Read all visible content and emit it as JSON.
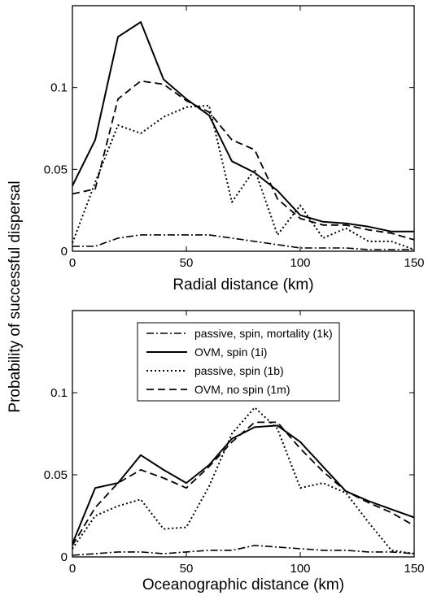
{
  "figure": {
    "ylabel": "Probability of successful dispersal"
  },
  "legend": {
    "entries": [
      {
        "label": "passive, spin, mortality (1k)",
        "style": "dashdot"
      },
      {
        "label": "OVM, spin (1i)",
        "style": "solid"
      },
      {
        "label": "passive, spin (1b)",
        "style": "dotted"
      },
      {
        "label": "OVM, no spin (1m)",
        "style": "dashed"
      }
    ],
    "placement": "top-center of bottom panel"
  },
  "chart_data": [
    {
      "type": "line",
      "xlabel": "Radial distance (km)",
      "ylabel": "",
      "xlim": [
        0,
        150
      ],
      "ylim": [
        0,
        0.15
      ],
      "xticks": [
        0,
        50,
        100,
        150
      ],
      "xtick_labels": [
        "0",
        "50",
        "100",
        "150"
      ],
      "yticks": [
        0,
        0.05,
        0.1
      ],
      "ytick_labels": [
        "0",
        "0.05",
        "0.1"
      ],
      "grid": false,
      "series": [
        {
          "name": "OVM, spin (1i)",
          "style": "solid",
          "x": [
            0,
            10,
            20,
            30,
            40,
            50,
            60,
            70,
            80,
            90,
            100,
            110,
            120,
            130,
            140,
            150
          ],
          "y": [
            0.04,
            0.068,
            0.131,
            0.14,
            0.105,
            0.093,
            0.083,
            0.055,
            0.048,
            0.037,
            0.022,
            0.018,
            0.017,
            0.015,
            0.012,
            0.012
          ]
        },
        {
          "name": "OVM, no spin (1m)",
          "style": "dashed",
          "x": [
            0,
            10,
            20,
            30,
            40,
            50,
            60,
            70,
            80,
            90,
            100,
            110,
            120,
            130,
            140,
            150
          ],
          "y": [
            0.035,
            0.038,
            0.093,
            0.104,
            0.102,
            0.092,
            0.085,
            0.068,
            0.062,
            0.032,
            0.02,
            0.016,
            0.016,
            0.013,
            0.011,
            0.007
          ]
        },
        {
          "name": "passive, spin (1b)",
          "style": "dotted",
          "x": [
            0,
            10,
            20,
            30,
            40,
            50,
            60,
            70,
            80,
            90,
            100,
            110,
            120,
            130,
            140,
            150
          ],
          "y": [
            0.005,
            0.042,
            0.077,
            0.072,
            0.082,
            0.088,
            0.089,
            0.03,
            0.05,
            0.01,
            0.028,
            0.008,
            0.014,
            0.006,
            0.006,
            0.001
          ]
        },
        {
          "name": "passive, spin, mortality (1k)",
          "style": "dashdot",
          "x": [
            0,
            10,
            20,
            30,
            40,
            50,
            60,
            70,
            80,
            90,
            100,
            110,
            120,
            130,
            140,
            150
          ],
          "y": [
            0.003,
            0.003,
            0.008,
            0.01,
            0.01,
            0.01,
            0.01,
            0.008,
            0.006,
            0.004,
            0.002,
            0.002,
            0.002,
            0.001,
            0.001,
            0.001
          ]
        }
      ]
    },
    {
      "type": "line",
      "xlabel": "Oceanographic distance (km)",
      "ylabel": "",
      "xlim": [
        0,
        150
      ],
      "ylim": [
        0,
        0.15
      ],
      "xticks": [
        0,
        50,
        100,
        150
      ],
      "xtick_labels": [
        "0",
        "50",
        "100",
        "150"
      ],
      "yticks": [
        0,
        0.05,
        0.1
      ],
      "ytick_labels": [
        "0",
        "0.05",
        "0.1"
      ],
      "grid": false,
      "series": [
        {
          "name": "OVM, spin (1i)",
          "style": "solid",
          "x": [
            0,
            10,
            20,
            30,
            40,
            50,
            60,
            70,
            80,
            90,
            100,
            110,
            120,
            130,
            140,
            150
          ],
          "y": [
            0.008,
            0.042,
            0.045,
            0.062,
            0.053,
            0.045,
            0.056,
            0.072,
            0.079,
            0.08,
            0.07,
            0.055,
            0.04,
            0.034,
            0.029,
            0.024
          ]
        },
        {
          "name": "OVM, no spin (1m)",
          "style": "dashed",
          "x": [
            0,
            10,
            20,
            30,
            40,
            50,
            60,
            70,
            80,
            90,
            100,
            110,
            120,
            130,
            140,
            150
          ],
          "y": [
            0.007,
            0.03,
            0.045,
            0.053,
            0.048,
            0.042,
            0.055,
            0.07,
            0.082,
            0.082,
            0.066,
            0.052,
            0.04,
            0.033,
            0.027,
            0.019
          ]
        },
        {
          "name": "passive, spin (1b)",
          "style": "dotted",
          "x": [
            0,
            10,
            20,
            30,
            40,
            50,
            60,
            70,
            80,
            90,
            100,
            110,
            120,
            130,
            140,
            150
          ],
          "y": [
            0.005,
            0.025,
            0.031,
            0.035,
            0.017,
            0.018,
            0.043,
            0.075,
            0.091,
            0.078,
            0.042,
            0.045,
            0.039,
            0.021,
            0.004,
            0.002
          ]
        },
        {
          "name": "passive, spin, mortality (1k)",
          "style": "dashdot",
          "x": [
            0,
            10,
            20,
            30,
            40,
            50,
            60,
            70,
            80,
            90,
            100,
            110,
            120,
            130,
            140,
            150
          ],
          "y": [
            0.001,
            0.002,
            0.003,
            0.003,
            0.002,
            0.003,
            0.004,
            0.004,
            0.007,
            0.006,
            0.005,
            0.004,
            0.004,
            0.003,
            0.003,
            0.002
          ]
        }
      ]
    }
  ]
}
